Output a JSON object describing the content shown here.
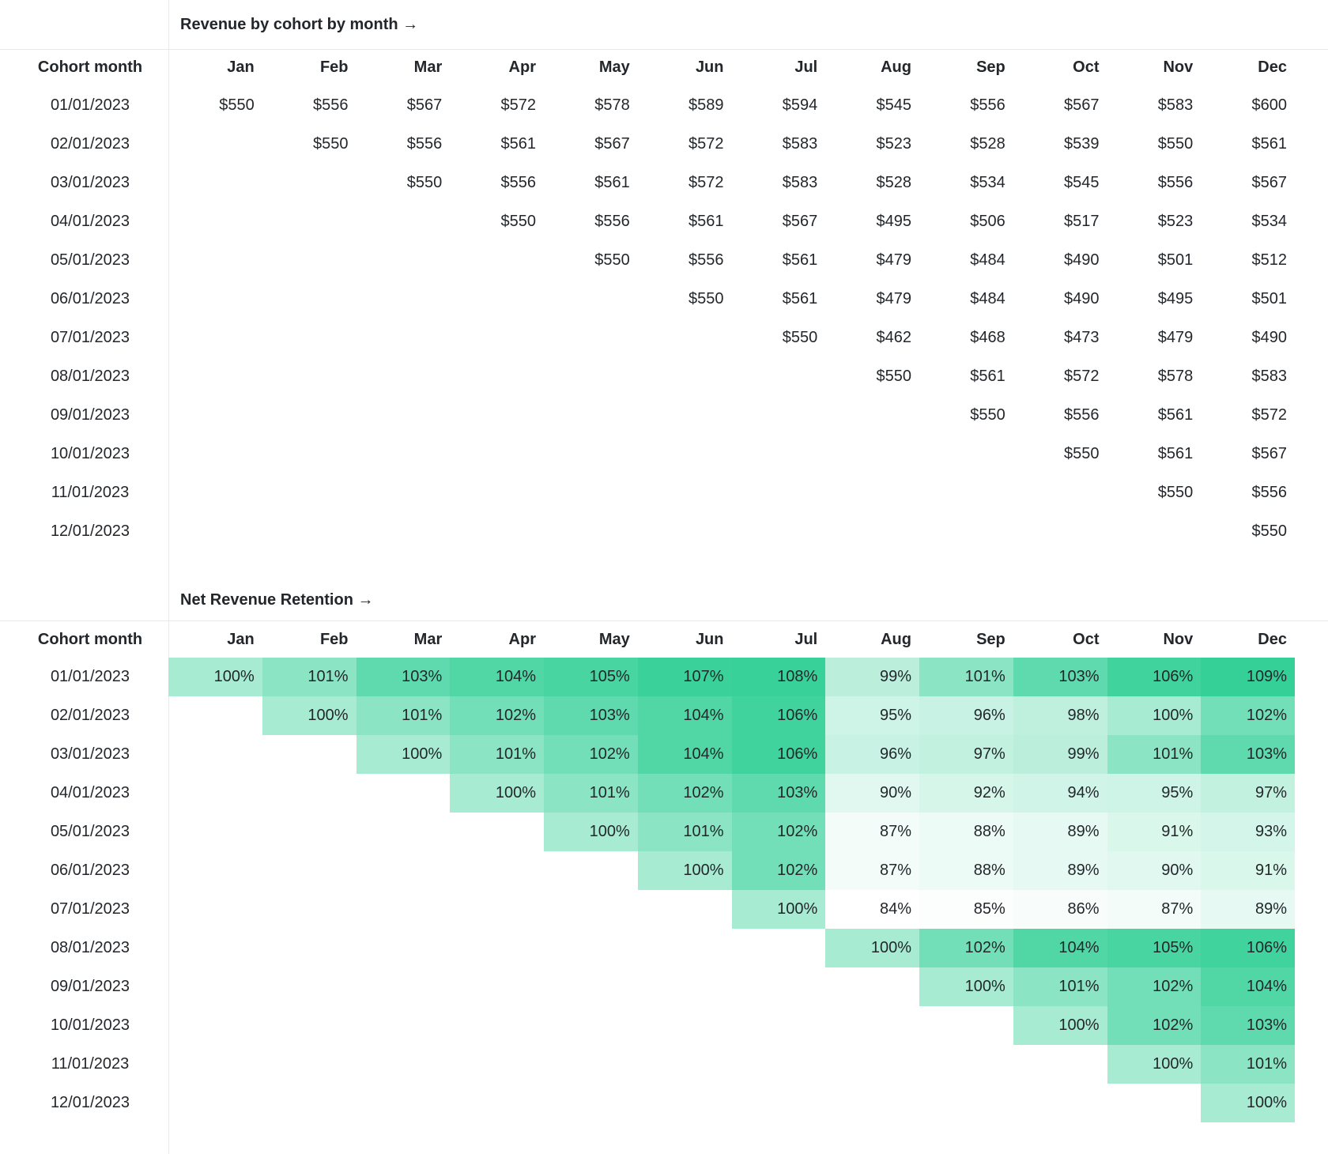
{
  "cohort_column_header": "Cohort month",
  "colors": {
    "background": "#ffffff",
    "text": "#23272b",
    "rule": "#e9eaec",
    "heatmap_min": "#ffffff",
    "heatmap_max": "#33d097"
  },
  "chart_data": [
    {
      "type": "heatmap",
      "title": "Revenue by cohort by month →",
      "xlabel": "",
      "ylabel": "Cohort month",
      "value_prefix": "$",
      "value_suffix": "",
      "colormap": "none",
      "x": [
        "Jan",
        "Feb",
        "Mar",
        "Apr",
        "May",
        "Jun",
        "Jul",
        "Aug",
        "Sep",
        "Oct",
        "Nov",
        "Dec"
      ],
      "y": [
        "01/01/2023",
        "02/01/2023",
        "03/01/2023",
        "04/01/2023",
        "05/01/2023",
        "06/01/2023",
        "07/01/2023",
        "08/01/2023",
        "09/01/2023",
        "10/01/2023",
        "11/01/2023",
        "12/01/2023"
      ],
      "values": [
        [
          550,
          556,
          567,
          572,
          578,
          589,
          594,
          545,
          556,
          567,
          583,
          600
        ],
        [
          null,
          550,
          556,
          561,
          567,
          572,
          583,
          523,
          528,
          539,
          550,
          561
        ],
        [
          null,
          null,
          550,
          556,
          561,
          572,
          583,
          528,
          534,
          545,
          556,
          567
        ],
        [
          null,
          null,
          null,
          550,
          556,
          561,
          567,
          495,
          506,
          517,
          523,
          534
        ],
        [
          null,
          null,
          null,
          null,
          550,
          556,
          561,
          479,
          484,
          490,
          501,
          512
        ],
        [
          null,
          null,
          null,
          null,
          null,
          550,
          561,
          479,
          484,
          490,
          495,
          501
        ],
        [
          null,
          null,
          null,
          null,
          null,
          null,
          550,
          462,
          468,
          473,
          479,
          490
        ],
        [
          null,
          null,
          null,
          null,
          null,
          null,
          null,
          550,
          561,
          572,
          578,
          583
        ],
        [
          null,
          null,
          null,
          null,
          null,
          null,
          null,
          null,
          550,
          556,
          561,
          572
        ],
        [
          null,
          null,
          null,
          null,
          null,
          null,
          null,
          null,
          null,
          550,
          561,
          567
        ],
        [
          null,
          null,
          null,
          null,
          null,
          null,
          null,
          null,
          null,
          null,
          550,
          556
        ],
        [
          null,
          null,
          null,
          null,
          null,
          null,
          null,
          null,
          null,
          null,
          null,
          550
        ]
      ]
    },
    {
      "type": "heatmap",
      "title": "Net Revenue Retention →",
      "xlabel": "",
      "ylabel": "Cohort month",
      "value_prefix": "",
      "value_suffix": "%",
      "colormap": "percentile-rank white→#33d097",
      "x": [
        "Jan",
        "Feb",
        "Mar",
        "Apr",
        "May",
        "Jun",
        "Jul",
        "Aug",
        "Sep",
        "Oct",
        "Nov",
        "Dec"
      ],
      "y": [
        "01/01/2023",
        "02/01/2023",
        "03/01/2023",
        "04/01/2023",
        "05/01/2023",
        "06/01/2023",
        "07/01/2023",
        "08/01/2023",
        "09/01/2023",
        "10/01/2023",
        "11/01/2023",
        "12/01/2023"
      ],
      "values": [
        [
          100,
          101,
          103,
          104,
          105,
          107,
          108,
          99,
          101,
          103,
          106,
          109
        ],
        [
          null,
          100,
          101,
          102,
          103,
          104,
          106,
          95,
          96,
          98,
          100,
          102
        ],
        [
          null,
          null,
          100,
          101,
          102,
          104,
          106,
          96,
          97,
          99,
          101,
          103
        ],
        [
          null,
          null,
          null,
          100,
          101,
          102,
          103,
          90,
          92,
          94,
          95,
          97
        ],
        [
          null,
          null,
          null,
          null,
          100,
          101,
          102,
          87,
          88,
          89,
          91,
          93
        ],
        [
          null,
          null,
          null,
          null,
          null,
          100,
          102,
          87,
          88,
          89,
          90,
          91
        ],
        [
          null,
          null,
          null,
          null,
          null,
          null,
          100,
          84,
          85,
          86,
          87,
          89
        ],
        [
          null,
          null,
          null,
          null,
          null,
          null,
          null,
          100,
          102,
          104,
          105,
          106
        ],
        [
          null,
          null,
          null,
          null,
          null,
          null,
          null,
          null,
          100,
          101,
          102,
          104
        ],
        [
          null,
          null,
          null,
          null,
          null,
          null,
          null,
          null,
          null,
          100,
          102,
          103
        ],
        [
          null,
          null,
          null,
          null,
          null,
          null,
          null,
          null,
          null,
          null,
          100,
          101
        ],
        [
          null,
          null,
          null,
          null,
          null,
          null,
          null,
          null,
          null,
          null,
          null,
          100
        ]
      ]
    }
  ]
}
